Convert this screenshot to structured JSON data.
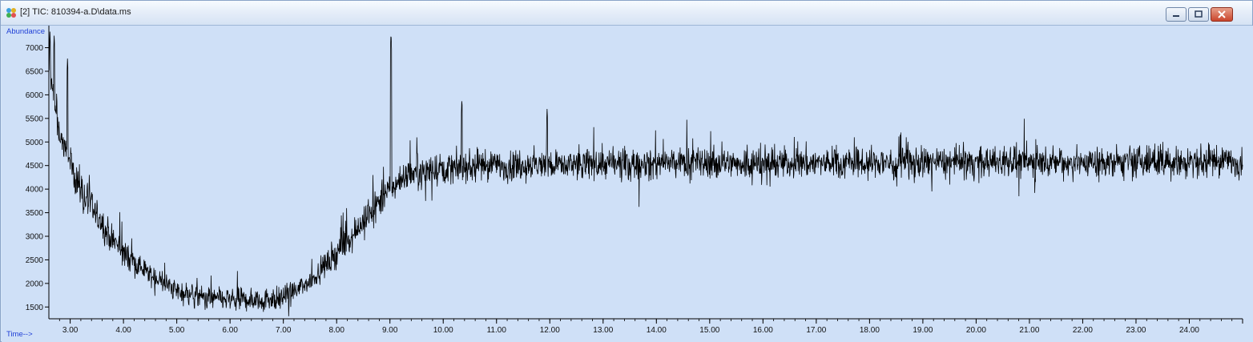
{
  "window": {
    "title": "[2] TIC: 810394-a.D\\data.ms",
    "icons": [
      "app-icon",
      "minimize-icon",
      "maximize-icon",
      "close-icon"
    ]
  },
  "chart_data": {
    "type": "line",
    "ylabel": "Abundance",
    "xlabel": "Time-->",
    "xlim": [
      2.6,
      25.0
    ],
    "ylim": [
      1250,
      7400
    ],
    "x_ticks": [
      3,
      4,
      5,
      6,
      7,
      8,
      9,
      10,
      11,
      12,
      13,
      14,
      15,
      16,
      17,
      18,
      19,
      20,
      21,
      22,
      23,
      24
    ],
    "x_tick_labels": [
      "3.00",
      "4.00",
      "5.00",
      "6.00",
      "7.00",
      "8.00",
      "9.00",
      "10.00",
      "11.00",
      "12.00",
      "13.00",
      "14.00",
      "15.00",
      "16.00",
      "17.00",
      "18.00",
      "19.00",
      "20.00",
      "21.00",
      "22.00",
      "23.00",
      "24.00"
    ],
    "y_ticks": [
      1500,
      2000,
      2500,
      3000,
      3500,
      4000,
      4500,
      5000,
      5500,
      6000,
      6500,
      7000
    ],
    "y_tick_labels": [
      "1500",
      "2000",
      "2500",
      "3000",
      "3500",
      "4000",
      "4500",
      "5000",
      "5500",
      "6000",
      "6500",
      "7000"
    ],
    "series": [
      {
        "x": [
          2.6,
          2.7,
          2.8,
          3.0,
          3.25,
          3.5,
          3.75,
          4.0,
          4.25,
          4.5,
          4.75,
          5.0,
          5.5,
          6.0,
          6.5,
          7.0,
          7.25,
          7.5,
          7.75,
          8.0,
          8.25,
          8.5,
          8.75,
          9.0,
          9.25,
          9.5,
          10.0,
          10.5,
          11.0,
          12.0,
          13.0,
          14.0,
          15.0,
          16.0,
          17.0,
          18.0,
          19.0,
          20.0,
          21.0,
          22.0,
          23.0,
          24.0,
          25.0
        ],
        "y": [
          6500,
          5800,
          5200,
          4500,
          3900,
          3400,
          3000,
          2650,
          2400,
          2200,
          2000,
          1850,
          1700,
          1650,
          1650,
          1700,
          1850,
          2050,
          2350,
          2650,
          3000,
          3300,
          3650,
          4000,
          4250,
          4400,
          4450,
          4480,
          4500,
          4520,
          4530,
          4540,
          4550,
          4550,
          4560,
          4560,
          4560,
          4570,
          4570,
          4570,
          4570,
          4580,
          4580
        ],
        "noise": 300
      }
    ],
    "peaks": [
      {
        "x": 2.62,
        "y": 7350
      },
      {
        "x": 2.7,
        "y": 7300
      },
      {
        "x": 2.95,
        "y": 6800
      },
      {
        "x": 9.02,
        "y": 7350
      },
      {
        "x": 10.35,
        "y": 5950
      },
      {
        "x": 11.95,
        "y": 5750
      }
    ]
  }
}
